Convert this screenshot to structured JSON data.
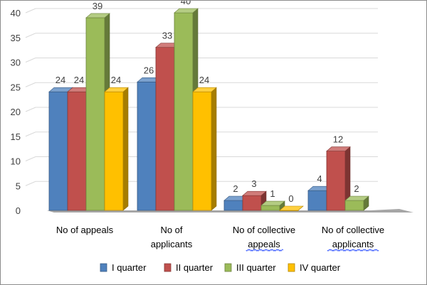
{
  "chart_data": {
    "type": "bar",
    "style": "3d-clustered-column",
    "categories": [
      [
        "No of appeals"
      ],
      [
        "No of",
        "applicants"
      ],
      [
        "No of collective",
        "appeals"
      ],
      [
        "No of collective",
        "applicants"
      ]
    ],
    "series": [
      {
        "name": "I quarter",
        "values": [
          24,
          26,
          2,
          4
        ],
        "color": "#4f81bd"
      },
      {
        "name": "II quarter",
        "values": [
          24,
          33,
          3,
          12
        ],
        "color": "#c0504d"
      },
      {
        "name": "III quarter",
        "values": [
          39,
          40,
          1,
          2
        ],
        "color": "#9bbb59"
      },
      {
        "name": "IV quarter",
        "values": [
          24,
          24,
          0,
          null
        ],
        "color": "#ffc000"
      }
    ],
    "y_ticks": [
      "0",
      "5",
      "10",
      "15",
      "20",
      "25",
      "30",
      "35",
      "40"
    ],
    "ylim": [
      0,
      40
    ],
    "title": "",
    "xlabel": "",
    "ylabel": "",
    "grid": true,
    "legend_position": "bottom",
    "wavy_underlined_words": [
      "appeals",
      "applicants"
    ]
  }
}
